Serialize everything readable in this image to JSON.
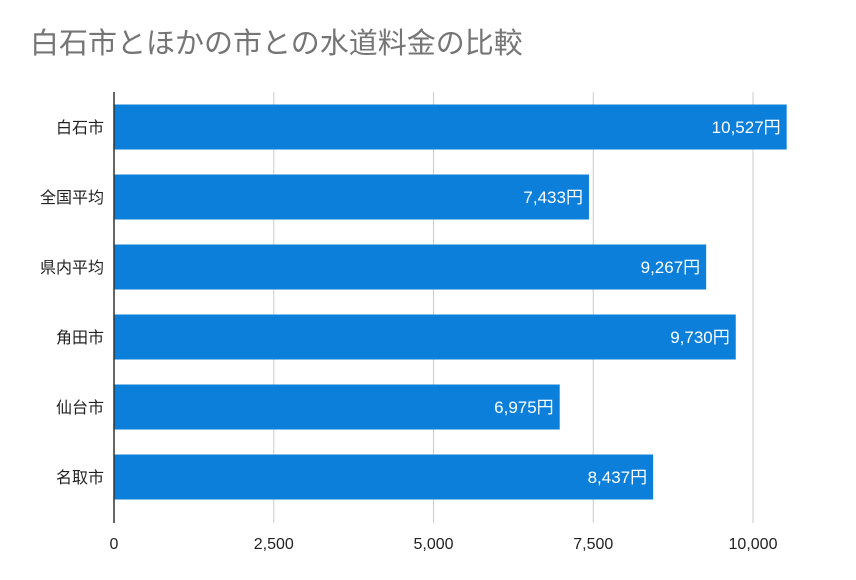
{
  "chart_data": {
    "type": "bar",
    "orientation": "horizontal",
    "title": "白石市とほかの市との水道料金の比較",
    "categories": [
      "白石市",
      "全国平均",
      "県内平均",
      "角田市",
      "仙台市",
      "名取市"
    ],
    "values": [
      10527,
      7433,
      9267,
      9730,
      6975,
      8437
    ],
    "data_labels": [
      "10,527円",
      "7,433円",
      "9,267円",
      "9,730円",
      "6,975円",
      "8,437円"
    ],
    "xlim": [
      0,
      10500
    ],
    "x_ticks": [
      0,
      2500,
      5000,
      7500,
      10000
    ],
    "x_tick_labels": [
      "0",
      "2,500",
      "5,000",
      "7,500",
      "10,000"
    ],
    "grid": true,
    "bar_color": "#0b7fda",
    "gridline_color": "#cccccc",
    "axis_color": "#333333"
  }
}
